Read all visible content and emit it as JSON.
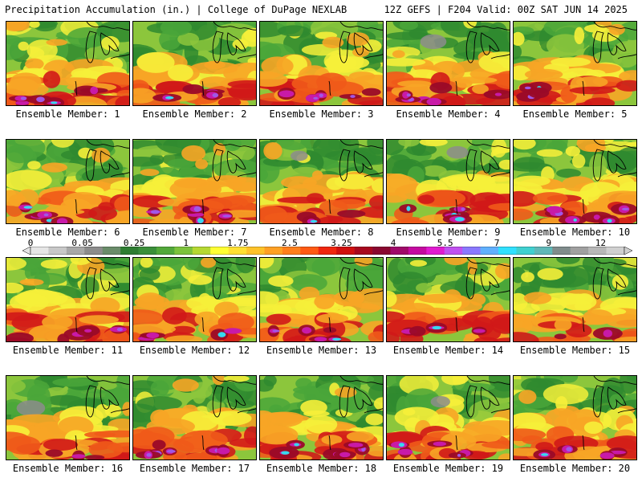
{
  "header": {
    "left_title": "Precipitation Accumulation (in.) | College of DuPage NEXLAB",
    "right_title": "12Z GEFS | F204 Valid: 00Z SAT JUN 14 2025"
  },
  "colorbar": {
    "labels": [
      "0",
      "0.05",
      "0.25",
      "1",
      "1.75",
      "2.5",
      "3.25",
      "4",
      "5.5",
      "7",
      "9",
      "12"
    ],
    "colors": [
      "#e6e6e6",
      "#c8c8c8",
      "#a8a8a8",
      "#8c8c8c",
      "#6a8c6a",
      "#2e7d32",
      "#3a8f3a",
      "#52a83a",
      "#7cc23c",
      "#b6d832",
      "#ffff33",
      "#ffe033",
      "#ffc229",
      "#ffa024",
      "#ff7f1c",
      "#ff5a14",
      "#f0260f",
      "#d0100f",
      "#a8081e",
      "#8a0830",
      "#a00a6a",
      "#c40aa0",
      "#e01ad0",
      "#c050f0",
      "#8a78ff",
      "#60b0ff",
      "#30e0ff",
      "#40d0d0",
      "#60b8b8",
      "#808c8c",
      "#a0a0a0",
      "#b8b8b8",
      "#d0d0d0"
    ]
  },
  "map_palette": {
    "dark_green": "#2f8a2f",
    "green": "#4aa63a",
    "light_green": "#8cc63c",
    "yellow": "#f6f03a",
    "orange": "#f7a526",
    "red_orange": "#ef5a1a",
    "red": "#d01818",
    "dark_red": "#9a0a28",
    "magenta": "#c81aa8",
    "violet": "#a058e6",
    "cyan": "#38d8f0",
    "gray": "#8c8c8c",
    "coast": "#000000"
  },
  "panels": [
    {
      "label": "Ensemble Member: 1",
      "north": 0.55,
      "south": 0.95,
      "extreme": 0.85,
      "gray": 0
    },
    {
      "label": "Ensemble Member: 2",
      "north": 0.35,
      "south": 0.8,
      "extreme": 0.55,
      "gray": 0
    },
    {
      "label": "Ensemble Member: 3",
      "north": 0.45,
      "south": 0.85,
      "extreme": 0.65,
      "gray": 0
    },
    {
      "label": "Ensemble Member: 4",
      "north": 0.3,
      "south": 0.92,
      "extreme": 0.85,
      "gray": 0.6
    },
    {
      "label": "Ensemble Member: 5",
      "north": 0.6,
      "south": 0.85,
      "extreme": 0.55,
      "gray": 0
    },
    {
      "label": "Ensemble Member: 6",
      "north": 0.4,
      "south": 0.9,
      "extreme": 0.75,
      "gray": 0
    },
    {
      "label": "Ensemble Member: 7",
      "north": 0.55,
      "south": 0.95,
      "extreme": 0.9,
      "gray": 0
    },
    {
      "label": "Ensemble Member: 8",
      "north": 0.3,
      "south": 0.75,
      "extreme": 0.4,
      "gray": 0.2
    },
    {
      "label": "Ensemble Member: 9",
      "north": 0.35,
      "south": 0.85,
      "extreme": 0.65,
      "gray": 0.4
    },
    {
      "label": "Ensemble Member: 10",
      "north": 0.65,
      "south": 0.95,
      "extreme": 0.9,
      "gray": 0
    },
    {
      "label": "Ensemble Member: 11",
      "north": 0.5,
      "south": 0.9,
      "extreme": 0.75,
      "gray": 0
    },
    {
      "label": "Ensemble Member: 12",
      "north": 0.45,
      "south": 0.85,
      "extreme": 0.55,
      "gray": 0
    },
    {
      "label": "Ensemble Member: 13",
      "north": 0.5,
      "south": 0.85,
      "extreme": 0.65,
      "gray": 0
    },
    {
      "label": "Ensemble Member: 14",
      "north": 0.6,
      "south": 0.85,
      "extreme": 0.6,
      "gray": 0
    },
    {
      "label": "Ensemble Member: 15",
      "north": 0.3,
      "south": 0.7,
      "extreme": 0.3,
      "gray": 0
    },
    {
      "label": "Ensemble Member: 16",
      "north": 0.3,
      "south": 0.8,
      "extreme": 0.45,
      "gray": 0.7
    },
    {
      "label": "Ensemble Member: 17",
      "north": 0.5,
      "south": 0.95,
      "extreme": 0.9,
      "gray": 0
    },
    {
      "label": "Ensemble Member: 18",
      "north": 0.45,
      "south": 0.95,
      "extreme": 0.85,
      "gray": 0
    },
    {
      "label": "Ensemble Member: 19",
      "north": 0.35,
      "south": 0.9,
      "extreme": 0.75,
      "gray": 0.3
    },
    {
      "label": "Ensemble Member: 20",
      "north": 0.55,
      "south": 0.85,
      "extreme": 0.6,
      "gray": 0
    }
  ]
}
